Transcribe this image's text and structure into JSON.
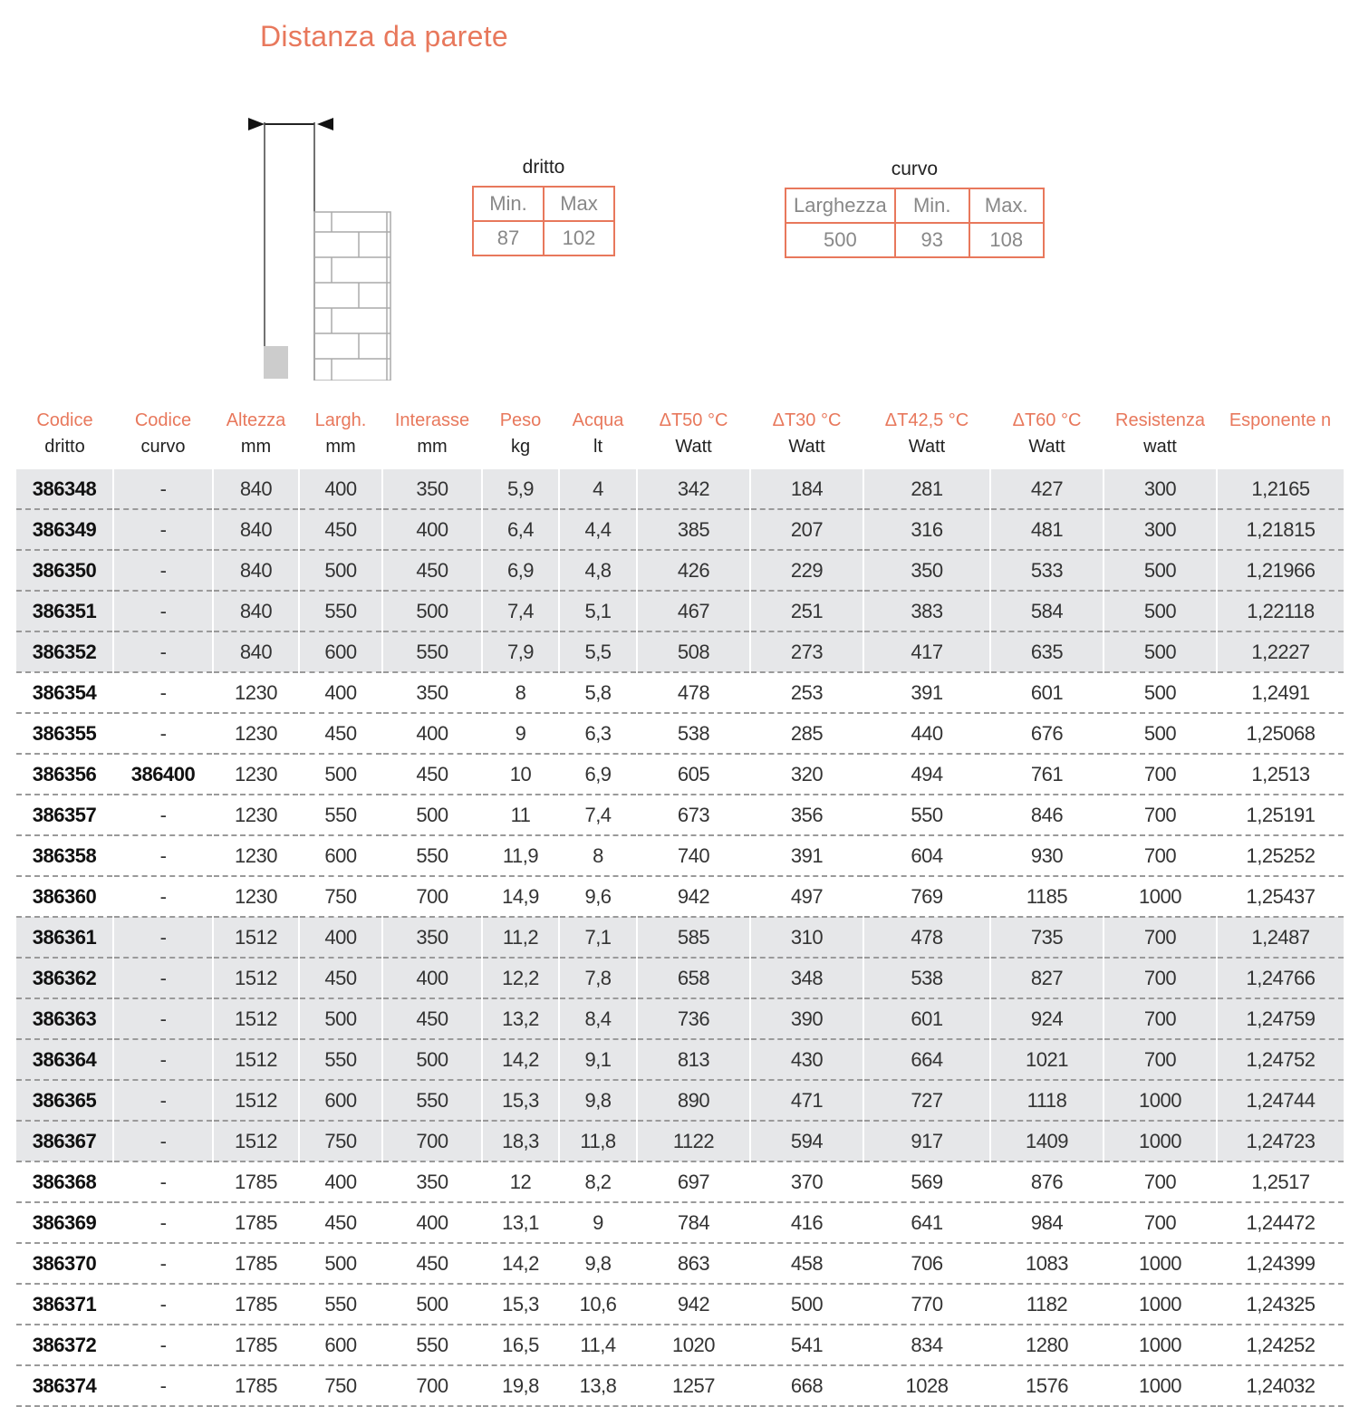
{
  "title": "Distanza da parete",
  "dritto": {
    "caption": "dritto",
    "headers": [
      "Min.",
      "Max"
    ],
    "values": [
      "87",
      "102"
    ]
  },
  "curvo": {
    "caption": "curvo",
    "headers": [
      "Larghezza",
      "Min.",
      "Max."
    ],
    "values": [
      "500",
      "93",
      "108"
    ]
  },
  "table": {
    "headers": [
      [
        "Codice",
        "dritto"
      ],
      [
        "Codice",
        "curvo"
      ],
      [
        "Altezza",
        "mm"
      ],
      [
        "Largh.",
        "mm"
      ],
      [
        "Interasse",
        "mm"
      ],
      [
        "Peso",
        "kg"
      ],
      [
        "Acqua",
        "lt"
      ],
      [
        "ΔT50 °C",
        "Watt"
      ],
      [
        "ΔT30 °C",
        "Watt"
      ],
      [
        "ΔT42,5 °C",
        "Watt"
      ],
      [
        "ΔT60 °C",
        "Watt"
      ],
      [
        "Resistenza",
        "watt"
      ],
      [
        "Esponente n",
        ""
      ]
    ],
    "rows": [
      [
        "386348",
        "-",
        "840",
        "400",
        "350",
        "5,9",
        "4",
        "342",
        "184",
        "281",
        "427",
        "300",
        "1,2165"
      ],
      [
        "386349",
        "-",
        "840",
        "450",
        "400",
        "6,4",
        "4,4",
        "385",
        "207",
        "316",
        "481",
        "300",
        "1,21815"
      ],
      [
        "386350",
        "-",
        "840",
        "500",
        "450",
        "6,9",
        "4,8",
        "426",
        "229",
        "350",
        "533",
        "500",
        "1,21966"
      ],
      [
        "386351",
        "-",
        "840",
        "550",
        "500",
        "7,4",
        "5,1",
        "467",
        "251",
        "383",
        "584",
        "500",
        "1,22118"
      ],
      [
        "386352",
        "-",
        "840",
        "600",
        "550",
        "7,9",
        "5,5",
        "508",
        "273",
        "417",
        "635",
        "500",
        "1,2227"
      ],
      [
        "386354",
        "-",
        "1230",
        "400",
        "350",
        "8",
        "5,8",
        "478",
        "253",
        "391",
        "601",
        "500",
        "1,2491"
      ],
      [
        "386355",
        "-",
        "1230",
        "450",
        "400",
        "9",
        "6,3",
        "538",
        "285",
        "440",
        "676",
        "500",
        "1,25068"
      ],
      [
        "386356",
        "386400",
        "1230",
        "500",
        "450",
        "10",
        "6,9",
        "605",
        "320",
        "494",
        "761",
        "700",
        "1,2513"
      ],
      [
        "386357",
        "-",
        "1230",
        "550",
        "500",
        "11",
        "7,4",
        "673",
        "356",
        "550",
        "846",
        "700",
        "1,25191"
      ],
      [
        "386358",
        "-",
        "1230",
        "600",
        "550",
        "11,9",
        "8",
        "740",
        "391",
        "604",
        "930",
        "700",
        "1,25252"
      ],
      [
        "386360",
        "-",
        "1230",
        "750",
        "700",
        "14,9",
        "9,6",
        "942",
        "497",
        "769",
        "1185",
        "1000",
        "1,25437"
      ],
      [
        "386361",
        "-",
        "1512",
        "400",
        "350",
        "11,2",
        "7,1",
        "585",
        "310",
        "478",
        "735",
        "700",
        "1,2487"
      ],
      [
        "386362",
        "-",
        "1512",
        "450",
        "400",
        "12,2",
        "7,8",
        "658",
        "348",
        "538",
        "827",
        "700",
        "1,24766"
      ],
      [
        "386363",
        "-",
        "1512",
        "500",
        "450",
        "13,2",
        "8,4",
        "736",
        "390",
        "601",
        "924",
        "700",
        "1,24759"
      ],
      [
        "386364",
        "-",
        "1512",
        "550",
        "500",
        "14,2",
        "9,1",
        "813",
        "430",
        "664",
        "1021",
        "700",
        "1,24752"
      ],
      [
        "386365",
        "-",
        "1512",
        "600",
        "550",
        "15,3",
        "9,8",
        "890",
        "471",
        "727",
        "1118",
        "1000",
        "1,24744"
      ],
      [
        "386367",
        "-",
        "1512",
        "750",
        "700",
        "18,3",
        "11,8",
        "1122",
        "594",
        "917",
        "1409",
        "1000",
        "1,24723"
      ],
      [
        "386368",
        "-",
        "1785",
        "400",
        "350",
        "12",
        "8,2",
        "697",
        "370",
        "569",
        "876",
        "700",
        "1,2517"
      ],
      [
        "386369",
        "-",
        "1785",
        "450",
        "400",
        "13,1",
        "9",
        "784",
        "416",
        "641",
        "984",
        "700",
        "1,24472"
      ],
      [
        "386370",
        "-",
        "1785",
        "500",
        "450",
        "14,2",
        "9,8",
        "863",
        "458",
        "706",
        "1083",
        "1000",
        "1,24399"
      ],
      [
        "386371",
        "-",
        "1785",
        "550",
        "500",
        "15,3",
        "10,6",
        "942",
        "500",
        "770",
        "1182",
        "1000",
        "1,24325"
      ],
      [
        "386372",
        "-",
        "1785",
        "600",
        "550",
        "16,5",
        "11,4",
        "1020",
        "541",
        "834",
        "1280",
        "1000",
        "1,24252"
      ],
      [
        "386374",
        "-",
        "1785",
        "750",
        "700",
        "19,8",
        "13,8",
        "1257",
        "668",
        "1028",
        "1576",
        "1000",
        "1,24032"
      ]
    ]
  },
  "colors": {
    "accent": "#e8785c",
    "row_shade": "#e6e7e9"
  }
}
